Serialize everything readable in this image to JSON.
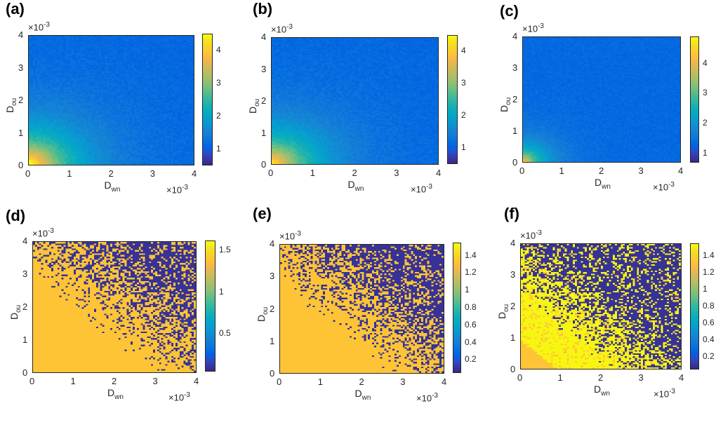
{
  "chart_data": [
    {
      "type": "heatmap",
      "panel": "(a)",
      "pattern": "decay",
      "strength": 1.0,
      "xlabel_base": "D",
      "xlabel_sub": "wn",
      "ylabel_base": "D",
      "ylabel_sub": "ou",
      "x_exponent": "×10",
      "x_exponent_power": "-3",
      "y_exponent": "×10",
      "y_exponent_power": "-3",
      "xlim": [
        0,
        4
      ],
      "ylim": [
        0,
        4
      ],
      "xticks": [
        "0",
        "1",
        "2",
        "3",
        "4"
      ],
      "yticks": [
        "0",
        "1",
        "2",
        "3",
        "4"
      ],
      "colorbar_range": [
        0.5,
        4.5
      ],
      "colorbar_ticks": [
        "1",
        "2",
        "3",
        "4"
      ]
    },
    {
      "type": "heatmap",
      "panel": "(b)",
      "pattern": "decay",
      "strength": 0.9,
      "xlabel_base": "D",
      "xlabel_sub": "wn",
      "ylabel_base": "D",
      "ylabel_sub": "ou",
      "x_exponent": "×10",
      "x_exponent_power": "-3",
      "y_exponent": "×10",
      "y_exponent_power": "-3",
      "xlim": [
        0,
        4
      ],
      "ylim": [
        0,
        4
      ],
      "xticks": [
        "0",
        "1",
        "2",
        "3",
        "4"
      ],
      "yticks": [
        "0",
        "1",
        "2",
        "3",
        "4"
      ],
      "colorbar_range": [
        0.5,
        4.5
      ],
      "colorbar_ticks": [
        "1",
        "2",
        "3",
        "4"
      ]
    },
    {
      "type": "heatmap",
      "panel": "(c)",
      "pattern": "decay",
      "strength": 0.55,
      "xlabel_base": "D",
      "xlabel_sub": "wn",
      "ylabel_base": "D",
      "ylabel_sub": "ou",
      "x_exponent": "×10",
      "x_exponent_power": "-3",
      "y_exponent": "×10",
      "y_exponent_power": "-3",
      "xlim": [
        0,
        4
      ],
      "ylim": [
        0,
        4
      ],
      "xticks": [
        "0",
        "1",
        "2",
        "3",
        "4"
      ],
      "yticks": [
        "0",
        "1",
        "2",
        "3",
        "4"
      ],
      "colorbar_range": [
        0.7,
        4.9
      ],
      "colorbar_ticks": [
        "1",
        "2",
        "3",
        "4"
      ]
    },
    {
      "type": "heatmap",
      "panel": "(d)",
      "pattern": "binary",
      "boundary": 4.6,
      "xlabel_base": "D",
      "xlabel_sub": "wn",
      "ylabel_base": "D",
      "ylabel_sub": "ou",
      "x_exponent": "×10",
      "x_exponent_power": "-3",
      "y_exponent": "×10",
      "y_exponent_power": "-3",
      "xlim": [
        0,
        4
      ],
      "ylim": [
        0,
        4
      ],
      "xticks": [
        "0",
        "1",
        "2",
        "3",
        "4"
      ],
      "yticks": [
        "0",
        "1",
        "2",
        "3",
        "4"
      ],
      "colorbar_range": [
        0.05,
        1.62
      ],
      "colorbar_ticks": [
        "0.5",
        "1",
        "1.5"
      ]
    },
    {
      "type": "heatmap",
      "panel": "(e)",
      "pattern": "binary",
      "boundary": 4.3,
      "xlabel_base": "D",
      "xlabel_sub": "wn",
      "ylabel_base": "D",
      "ylabel_sub": "ou",
      "x_exponent": "×10",
      "x_exponent_power": "-3",
      "y_exponent": "×10",
      "y_exponent_power": "-3",
      "xlim": [
        0,
        4
      ],
      "ylim": [
        0,
        4
      ],
      "xticks": [
        "0",
        "1",
        "2",
        "3",
        "4"
      ],
      "yticks": [
        "0",
        "1",
        "2",
        "3",
        "4"
      ],
      "colorbar_range": [
        0.05,
        1.55
      ],
      "colorbar_ticks": [
        "0.2",
        "0.4",
        "0.6",
        "0.8",
        "1",
        "1.2",
        "1.4"
      ]
    },
    {
      "type": "heatmap",
      "panel": "(f)",
      "pattern": "binary-bright",
      "boundary": 3.4,
      "xlabel_base": "D",
      "xlabel_sub": "wn",
      "ylabel_base": "D",
      "ylabel_sub": "ou",
      "x_exponent": "×10",
      "x_exponent_power": "-3",
      "y_exponent": "×10",
      "y_exponent_power": "-3",
      "xlim": [
        0,
        4
      ],
      "ylim": [
        0,
        4
      ],
      "xticks": [
        "0",
        "1",
        "2",
        "3",
        "4"
      ],
      "yticks": [
        "0",
        "1",
        "2",
        "3",
        "4"
      ],
      "colorbar_range": [
        0.05,
        1.55
      ],
      "colorbar_ticks": [
        "0.2",
        "0.4",
        "0.6",
        "0.8",
        "1",
        "1.2",
        "1.4"
      ]
    }
  ]
}
